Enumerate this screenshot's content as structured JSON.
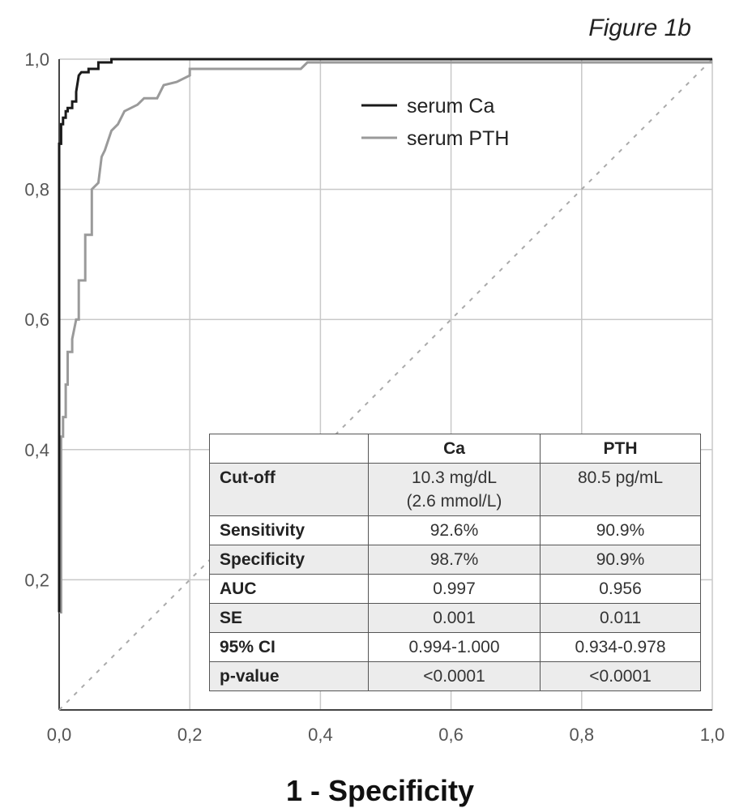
{
  "chart_data": {
    "type": "line",
    "title": "Figure 1b",
    "xlabel": "1 - Specificity",
    "ylabel": "",
    "xlim": [
      0,
      1
    ],
    "ylim": [
      0,
      1
    ],
    "x_ticks": [
      "0,0",
      "0,2",
      "0,4",
      "0,6",
      "0,8",
      "1,0"
    ],
    "y_ticks": [
      "0,2",
      "0,4",
      "0,6",
      "0,8",
      "1,0"
    ],
    "grid": true,
    "legend_position": "top-right",
    "series": [
      {
        "name": "serum Ca",
        "color": "#1a1a1a",
        "x": [
          0,
          0,
          0.003,
          0.003,
          0.006,
          0.006,
          0.01,
          0.01,
          0.013,
          0.013,
          0.02,
          0.02,
          0.026,
          0.026,
          0.03,
          0.034,
          0.045,
          0.045,
          0.06,
          0.06,
          0.08,
          0.08,
          1.0
        ],
        "y": [
          0.15,
          0.87,
          0.87,
          0.9,
          0.9,
          0.91,
          0.91,
          0.92,
          0.92,
          0.925,
          0.925,
          0.935,
          0.935,
          0.95,
          0.975,
          0.98,
          0.98,
          0.985,
          0.985,
          0.995,
          0.995,
          1.0,
          1.0
        ]
      },
      {
        "name": "serum PTH",
        "color": "#9a9a9a",
        "x": [
          0,
          0.003,
          0.003,
          0.006,
          0.006,
          0.01,
          0.01,
          0.013,
          0.013,
          0.02,
          0.02,
          0.026,
          0.03,
          0.03,
          0.04,
          0.04,
          0.05,
          0.05,
          0.06,
          0.065,
          0.07,
          0.08,
          0.09,
          0.1,
          0.12,
          0.13,
          0.15,
          0.16,
          0.18,
          0.2,
          0.2,
          0.37,
          0.38,
          1.0
        ],
        "y": [
          0.15,
          0.15,
          0.42,
          0.42,
          0.45,
          0.45,
          0.5,
          0.5,
          0.55,
          0.55,
          0.57,
          0.6,
          0.6,
          0.66,
          0.66,
          0.73,
          0.73,
          0.8,
          0.81,
          0.85,
          0.86,
          0.89,
          0.9,
          0.92,
          0.93,
          0.94,
          0.94,
          0.96,
          0.965,
          0.975,
          0.985,
          0.985,
          0.995,
          0.995
        ]
      },
      {
        "name": "",
        "color": "#aaaaaa",
        "dashed": true,
        "x": [
          0,
          1
        ],
        "y": [
          0,
          1
        ]
      }
    ]
  },
  "table": {
    "headers": [
      "",
      "Ca",
      "PTH"
    ],
    "rows": [
      {
        "label": "Cut-off",
        "ca": [
          "10.3 mg/dL",
          "(2.6 mmol/L)"
        ],
        "pth": [
          "80.5 pg/mL"
        ],
        "shade": true
      },
      {
        "label": "Sensitivity",
        "ca": [
          "92.6%"
        ],
        "pth": [
          "90.9%"
        ],
        "shade": false
      },
      {
        "label": "Specificity",
        "ca": [
          "98.7%"
        ],
        "pth": [
          "90.9%"
        ],
        "shade": true
      },
      {
        "label": "AUC",
        "ca": [
          "0.997"
        ],
        "pth": [
          "0.956"
        ],
        "shade": false
      },
      {
        "label": "SE",
        "ca": [
          "0.001"
        ],
        "pth": [
          "0.011"
        ],
        "shade": true
      },
      {
        "label": "95% CI",
        "ca": [
          "0.994-1.000"
        ],
        "pth": [
          "0.934-0.978"
        ],
        "shade": false
      },
      {
        "label": "p-value",
        "ca": [
          "<0.0001"
        ],
        "pth": [
          "<0.0001"
        ],
        "shade": true
      }
    ]
  }
}
